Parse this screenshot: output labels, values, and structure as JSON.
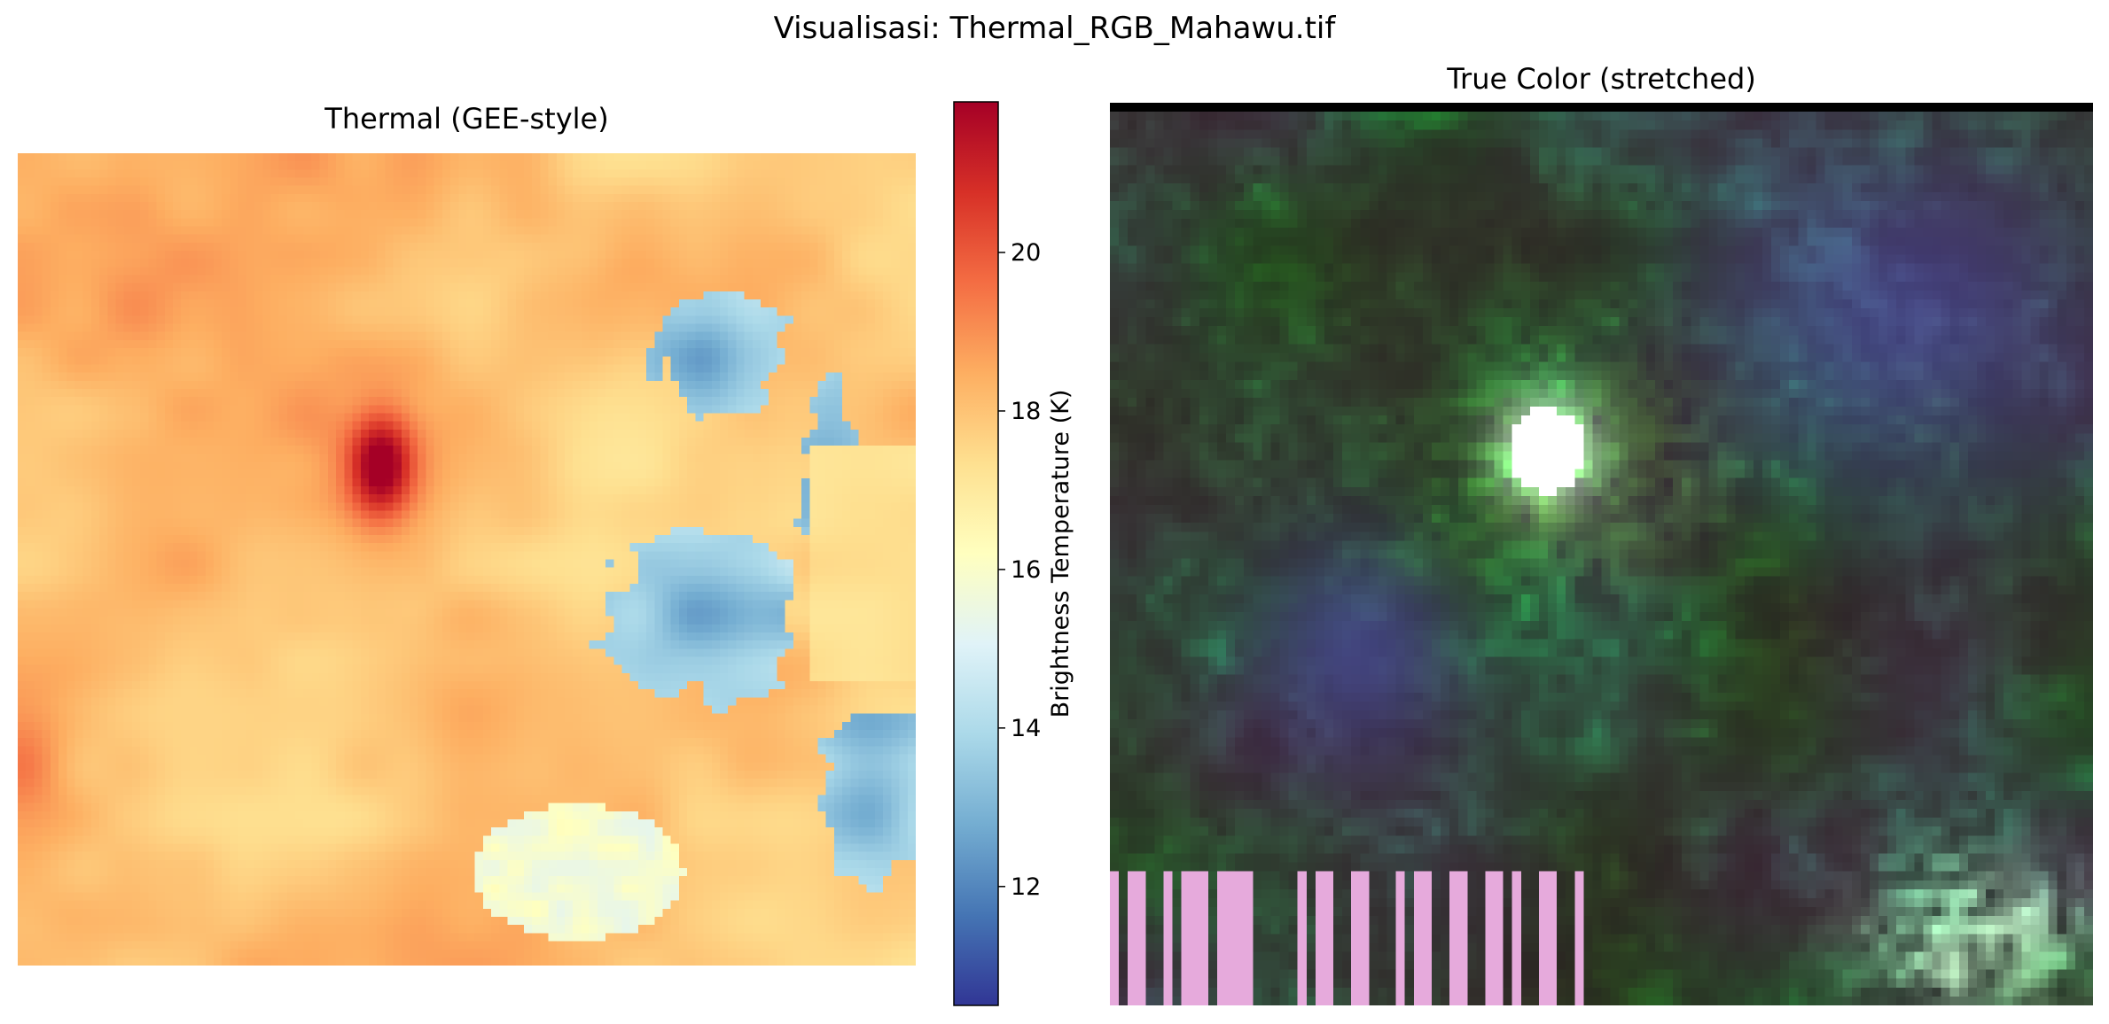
{
  "figure": {
    "title": "Visualisasi: Thermal_RGB_Mahawu.tif"
  },
  "thermal_panel": {
    "title": "Thermal (GEE-style)",
    "colormap": "RdYlBu_r",
    "colors": [
      "#313695",
      "#4575b4",
      "#74add1",
      "#abd9e9",
      "#e0f3f8",
      "#ffffbf",
      "#fee090",
      "#fdae61",
      "#f46d43",
      "#d73027",
      "#a50026"
    ]
  },
  "colorbar": {
    "label": "Brightness Temperature (K)",
    "range": [
      10.5,
      21.9
    ],
    "ticks": [
      {
        "value": 12,
        "label": "12"
      },
      {
        "value": 14,
        "label": "14"
      },
      {
        "value": 16,
        "label": "16"
      },
      {
        "value": 18,
        "label": "18"
      },
      {
        "value": 20,
        "label": "20"
      }
    ]
  },
  "truecolor_panel": {
    "title": "True Color (stretched)",
    "dominant_colors": [
      "#1e3a1a",
      "#3f7a2c",
      "#3a3f7a",
      "#ffffff",
      "#8cf05a"
    ]
  }
}
